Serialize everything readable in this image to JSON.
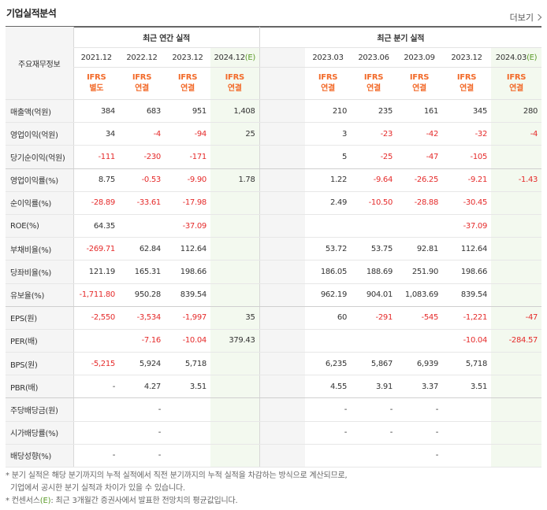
{
  "title": "기업실적분석",
  "more_label": "더보기",
  "header": {
    "corner_label": "주요재무정보",
    "annual_group": "최근 연간 실적",
    "quarter_group": "최근 분기 실적",
    "periods": [
      "2021.12",
      "2022.12",
      "2023.12",
      "2024.12",
      "2023.03",
      "2023.06",
      "2023.09",
      "2023.12",
      "2024.03"
    ],
    "estimate_mark": "(E)",
    "ifrs": [
      "IFRS",
      "IFRS",
      "IFRS",
      "IFRS",
      "IFRS",
      "IFRS",
      "IFRS",
      "IFRS",
      "IFRS"
    ],
    "basis": [
      "별도",
      "연결",
      "연결",
      "연결",
      "연결",
      "연결",
      "연결",
      "연결",
      "연결"
    ]
  },
  "rows": [
    {
      "label": "매출액(억원)",
      "values": [
        "384",
        "683",
        "951",
        "1,408",
        "210",
        "235",
        "161",
        "345",
        "280"
      ]
    },
    {
      "label": "영업이익(억원)",
      "values": [
        "34",
        "-4",
        "-94",
        "25",
        "3",
        "-23",
        "-42",
        "-32",
        "-4"
      ]
    },
    {
      "label": "당기순이익(억원)",
      "values": [
        "-111",
        "-230",
        "-171",
        "",
        "5",
        "-25",
        "-47",
        "-105",
        ""
      ]
    },
    {
      "label": "영업이익률(%)",
      "values": [
        "8.75",
        "-0.53",
        "-9.90",
        "1.78",
        "1.22",
        "-9.64",
        "-26.25",
        "-9.21",
        "-1.43"
      ]
    },
    {
      "label": "순이익률(%)",
      "values": [
        "-28.89",
        "-33.61",
        "-17.98",
        "",
        "2.49",
        "-10.50",
        "-28.88",
        "-30.45",
        ""
      ]
    },
    {
      "label": "ROE(%)",
      "values": [
        "64.35",
        "",
        "-37.09",
        "",
        "",
        "",
        "",
        "-37.09",
        ""
      ]
    },
    {
      "label": "부채비율(%)",
      "values": [
        "-269.71",
        "62.84",
        "112.64",
        "",
        "53.72",
        "53.75",
        "92.81",
        "112.64",
        ""
      ]
    },
    {
      "label": "당좌비율(%)",
      "values": [
        "121.19",
        "165.31",
        "198.66",
        "",
        "186.05",
        "188.69",
        "251.90",
        "198.66",
        ""
      ]
    },
    {
      "label": "유보율(%)",
      "values": [
        "-1,711.80",
        "950.28",
        "839.54",
        "",
        "962.19",
        "904.01",
        "1,083.69",
        "839.54",
        ""
      ]
    },
    {
      "label": "EPS(원)",
      "values": [
        "-2,550",
        "-3,534",
        "-1,997",
        "35",
        "60",
        "-291",
        "-545",
        "-1,221",
        "-47"
      ]
    },
    {
      "label": "PER(배)",
      "values": [
        "",
        "-7.16",
        "-10.04",
        "379.43",
        "",
        "",
        "",
        "-10.04",
        "-284.57"
      ]
    },
    {
      "label": "BPS(원)",
      "values": [
        "-5,215",
        "5,924",
        "5,718",
        "",
        "6,235",
        "5,867",
        "6,939",
        "5,718",
        ""
      ]
    },
    {
      "label": "PBR(배)",
      "values": [
        "-",
        "4.27",
        "3.51",
        "",
        "4.55",
        "3.91",
        "3.37",
        "3.51",
        ""
      ]
    },
    {
      "label": "주당배당금(원)",
      "values": [
        "",
        "-",
        "",
        "",
        "-",
        "-",
        "-",
        "",
        ""
      ]
    },
    {
      "label": "시가배당률(%)",
      "values": [
        "",
        "-",
        "",
        "",
        "-",
        "-",
        "-",
        "",
        ""
      ]
    },
    {
      "label": "배당성향(%)",
      "values": [
        "-",
        "-",
        "",
        "",
        "",
        "",
        "-",
        "",
        ""
      ]
    }
  ],
  "notes": {
    "line1": "* 분기 실적은 해당 분기까지의 누적 실적에서 직전 분기까지의 누적 실적을 차감하는 방식으로 계산되므로,",
    "line2": "기업에서 공시한 분기 실적과 차이가 있을 수 있습니다.",
    "line3_prefix": "* 컨센서스",
    "line3_mark": "(E)",
    "line3_suffix": ": 최근 3개월간 증권사에서 발표한 전망치의 평균값입니다."
  },
  "colors": {
    "negative": "#e52b2b",
    "ifrs": "#f26b2b",
    "estimate_bg": "#f3f9ef",
    "estimate_mark": "#5a9a28"
  }
}
